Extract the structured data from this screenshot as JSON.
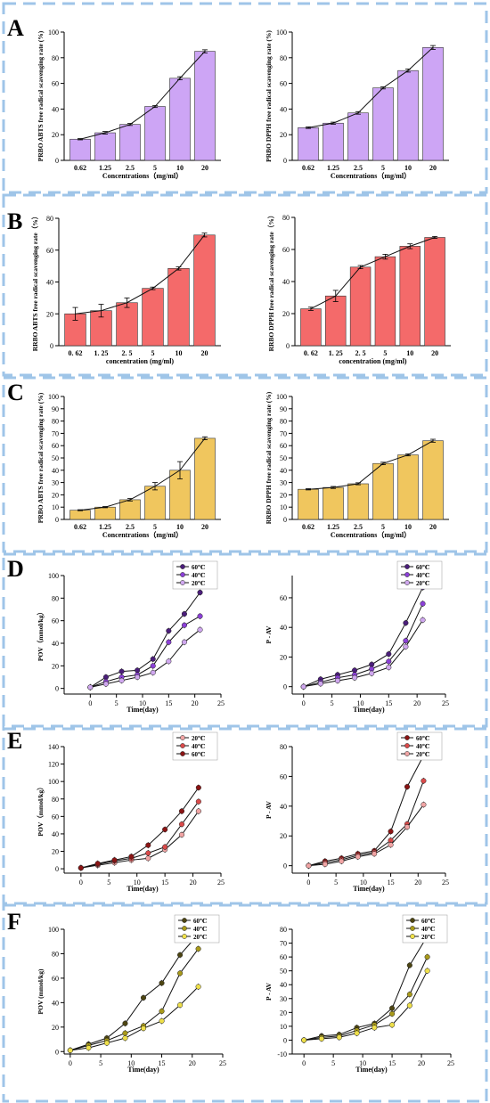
{
  "colors": {
    "border": "#9fc5e8",
    "purple": "#cda5f5",
    "red": "#f46a6a",
    "gold": "#f0c65e",
    "line": "#111111",
    "dark_purple": "#4b1e7a",
    "mid_purple": "#8b40d6",
    "light_purple": "#cfa7ee",
    "dark_red": "#8a1414",
    "mid_red": "#d94a4a",
    "light_red": "#f0a4a4",
    "dark_olive": "#4d4512",
    "mid_olive": "#a99a1b",
    "light_olive": "#efe04a"
  },
  "panel_letters": [
    "A",
    "B",
    "C",
    "D",
    "E",
    "F"
  ],
  "chart_data": [
    {
      "id": "A1",
      "type": "bar",
      "color": "purple",
      "categories": [
        "0.62",
        "1.25",
        "2.5",
        "5",
        "10",
        "20"
      ],
      "values": [
        16.5,
        21.5,
        28,
        42,
        64,
        85
      ],
      "errors": [
        0.5,
        1,
        0.8,
        0.8,
        1.2,
        1.2
      ],
      "ylim": [
        0,
        100
      ],
      "yticks": [
        0,
        20,
        40,
        60,
        80,
        100
      ],
      "ylabel": "PRBO ABTS free radical scavenging rate (%)",
      "xlabel": "Concentrations（mg/ml）"
    },
    {
      "id": "A2",
      "type": "bar",
      "color": "purple",
      "categories": [
        "0.62",
        "1.25",
        "2.5",
        "5",
        "10",
        "20"
      ],
      "values": [
        25.5,
        29,
        37,
        56.5,
        70,
        88
      ],
      "errors": [
        0.6,
        0.8,
        1,
        0.8,
        1.2,
        1.5
      ],
      "ylim": [
        0,
        100
      ],
      "yticks": [
        0,
        20,
        40,
        60,
        80,
        100
      ],
      "ylabel": "PRBO DPPH free radical scavenging rate (%)",
      "xlabel": "Concentrations（mg/ml）"
    },
    {
      "id": "B1",
      "type": "bar",
      "color": "red",
      "categories": [
        "0. 62",
        "1. 25",
        "2. 5",
        "5",
        "10",
        "20"
      ],
      "values": [
        20,
        22,
        27,
        36,
        48.5,
        69.5
      ],
      "errors": [
        4,
        4,
        3,
        0.8,
        1,
        1.2
      ],
      "ylim": [
        0,
        80
      ],
      "yticks": [
        0,
        20,
        40,
        60,
        80
      ],
      "ylabel": "RRBO ABTS free radical scavenging rate（%）",
      "xlabel": "concentration (mg/ml)"
    },
    {
      "id": "B2",
      "type": "bar",
      "color": "red",
      "categories": [
        "0. 62",
        "1. 25",
        "2. 5",
        "5",
        "10",
        "20"
      ],
      "values": [
        23,
        31,
        49,
        55.5,
        62,
        67.5
      ],
      "errors": [
        1,
        3.5,
        1,
        1.5,
        1.5,
        0.6
      ],
      "ylim": [
        0,
        80
      ],
      "yticks": [
        0,
        20,
        40,
        60,
        80
      ],
      "ylabel": "RRBO DPPH free radical scavenging rate（%）",
      "xlabel": "concentration (mg/ml)"
    },
    {
      "id": "C1",
      "type": "bar",
      "color": "gold",
      "categories": [
        "0.62",
        "1.25",
        "2.5",
        "5",
        "10",
        "20"
      ],
      "values": [
        7.5,
        10,
        16,
        27,
        40,
        66
      ],
      "errors": [
        0.4,
        0.5,
        1,
        3,
        7,
        1.2
      ],
      "ylim": [
        0,
        100
      ],
      "yticks": [
        0,
        10,
        20,
        30,
        40,
        50,
        60,
        70,
        80,
        90,
        100
      ],
      "ylabel": "PRBO ABTS free radical scavenging rate (%)",
      "xlabel": "Concentrations（mg/ml）"
    },
    {
      "id": "C2",
      "type": "bar",
      "color": "gold",
      "categories": [
        "0.62",
        "1.25",
        "2.5",
        "5",
        "10",
        "20"
      ],
      "values": [
        24.5,
        26,
        29,
        45.5,
        52.5,
        64
      ],
      "errors": [
        0.5,
        0.8,
        0.8,
        1,
        0.8,
        1.2
      ],
      "ylim": [
        0,
        100
      ],
      "yticks": [
        0,
        10,
        20,
        30,
        40,
        50,
        60,
        70,
        80,
        90,
        100
      ],
      "ylabel": "RRBO DPPH free radical scavenging rate (%)",
      "xlabel": "Concentrations（mg/ml）"
    },
    {
      "id": "D1",
      "type": "line",
      "x": [
        0,
        3,
        6,
        9,
        12,
        15,
        18,
        21
      ],
      "series": [
        {
          "name": "60℃",
          "color": "dark_purple",
          "values": [
            1,
            10,
            15,
            16,
            26,
            51,
            66,
            85
          ]
        },
        {
          "name": "40℃",
          "color": "mid_purple",
          "values": [
            1,
            6,
            10,
            12,
            20,
            41,
            56,
            64
          ]
        },
        {
          "name": "20℃",
          "color": "light_purple",
          "values": [
            1,
            4,
            7,
            10,
            14,
            24,
            41,
            52
          ]
        }
      ],
      "xlim": [
        -5,
        25
      ],
      "xticks": [
        0,
        5,
        10,
        15,
        20,
        25
      ],
      "ylim": [
        -5,
        100
      ],
      "yticks": [
        0,
        20,
        40,
        60,
        80,
        100
      ],
      "ylabel": "POV（mmol/kg）",
      "xlabel": "Time(day)",
      "legend": "top-right"
    },
    {
      "id": "D2",
      "type": "line",
      "x": [
        0,
        3,
        6,
        9,
        12,
        15,
        18,
        21
      ],
      "series": [
        {
          "name": "60℃",
          "color": "dark_purple",
          "values": [
            0,
            5,
            8,
            11,
            15,
            22,
            43,
            67
          ]
        },
        {
          "name": "40℃",
          "color": "mid_purple",
          "values": [
            0,
            3,
            6,
            8,
            12,
            17,
            31,
            56
          ]
        },
        {
          "name": "20℃",
          "color": "light_purple",
          "values": [
            0,
            2,
            4,
            6,
            9,
            13,
            27,
            45
          ]
        }
      ],
      "xlim": [
        -2,
        25
      ],
      "xticks": [
        0,
        5,
        10,
        15,
        20,
        25
      ],
      "ylim": [
        -5,
        75
      ],
      "yticks": [
        0,
        20,
        40,
        60
      ],
      "ylabel": "P - AV",
      "xlabel": "Time(day)",
      "legend": "top-right"
    },
    {
      "id": "E1",
      "type": "line",
      "x": [
        0,
        3,
        6,
        9,
        12,
        15,
        18,
        21
      ],
      "series": [
        {
          "name": "20℃",
          "color": "light_red",
          "values": [
            1,
            4,
            7,
            10,
            12,
            22,
            39,
            66
          ]
        },
        {
          "name": "40℃",
          "color": "mid_red",
          "values": [
            1,
            5,
            9,
            12,
            18,
            25,
            51,
            77
          ]
        },
        {
          "name": "60℃",
          "color": "dark_red",
          "values": [
            1,
            6,
            10,
            14,
            27,
            45,
            66,
            93
          ]
        }
      ],
      "xlim": [
        -3,
        25
      ],
      "xticks": [
        0,
        5,
        10,
        15,
        20,
        25
      ],
      "ylim": [
        -5,
        140
      ],
      "yticks": [
        0,
        20,
        40,
        60,
        80,
        100,
        120,
        140
      ],
      "ylabel": "POV（mmol/kg）",
      "xlabel": "Time(day)",
      "legend": "top-right"
    },
    {
      "id": "E2",
      "type": "line",
      "x": [
        0,
        3,
        6,
        9,
        12,
        15,
        18,
        21
      ],
      "series": [
        {
          "name": "60℃",
          "color": "dark_red",
          "values": [
            0,
            3,
            5,
            8,
            10,
            23,
            53,
            74
          ]
        },
        {
          "name": "40℃",
          "color": "mid_red",
          "values": [
            0,
            2,
            4,
            7,
            9,
            17,
            28,
            57
          ]
        },
        {
          "name": "20℃",
          "color": "light_red",
          "values": [
            0,
            1,
            3,
            6,
            8,
            14,
            26,
            41
          ]
        }
      ],
      "xlim": [
        -3,
        25
      ],
      "xticks": [
        0,
        5,
        10,
        15,
        20,
        25
      ],
      "ylim": [
        -5,
        80
      ],
      "yticks": [
        0,
        20,
        40,
        60,
        80
      ],
      "ylabel": "P - AV",
      "xlabel": "Time(day)",
      "legend": "top-right"
    },
    {
      "id": "F1",
      "type": "line",
      "x": [
        0,
        3,
        6,
        9,
        12,
        15,
        18,
        21
      ],
      "series": [
        {
          "name": "60℃",
          "color": "dark_olive",
          "values": [
            1,
            6,
            11,
            23,
            44,
            56,
            79,
            96
          ]
        },
        {
          "name": "40℃",
          "color": "mid_olive",
          "values": [
            1,
            5,
            9,
            15,
            21,
            33,
            64,
            84
          ]
        },
        {
          "name": "20℃",
          "color": "light_olive",
          "values": [
            1,
            3,
            7,
            11,
            19,
            25,
            38,
            53
          ]
        }
      ],
      "xlim": [
        -1,
        25
      ],
      "xticks": [
        0,
        5,
        10,
        15,
        20,
        25
      ],
      "ylim": [
        -2,
        100
      ],
      "yticks": [
        0,
        20,
        40,
        60,
        80,
        100
      ],
      "ylabel": "POV (mmol/kg)",
      "xlabel": "Time(day)",
      "legend": "top-right"
    },
    {
      "id": "F2",
      "type": "line",
      "x": [
        0,
        3,
        6,
        9,
        12,
        15,
        18,
        21
      ],
      "series": [
        {
          "name": "60℃",
          "color": "dark_olive",
          "values": [
            0,
            3,
            4,
            9,
            12,
            23,
            54,
            75
          ]
        },
        {
          "name": "40℃",
          "color": "mid_olive",
          "values": [
            0,
            2,
            3,
            7,
            11,
            19,
            33,
            60
          ]
        },
        {
          "name": "20℃",
          "color": "light_olive",
          "values": [
            0,
            1,
            2,
            5,
            9,
            11,
            25,
            50
          ]
        }
      ],
      "xlim": [
        -2,
        25
      ],
      "xticks": [
        0,
        5,
        10,
        15,
        20,
        25
      ],
      "ylim": [
        -10,
        80
      ],
      "yticks": [
        -10,
        0,
        10,
        20,
        30,
        40,
        50,
        60,
        70,
        80
      ],
      "ylabel": "P - AV",
      "xlabel": "Time(day)",
      "legend": "top-right"
    }
  ]
}
